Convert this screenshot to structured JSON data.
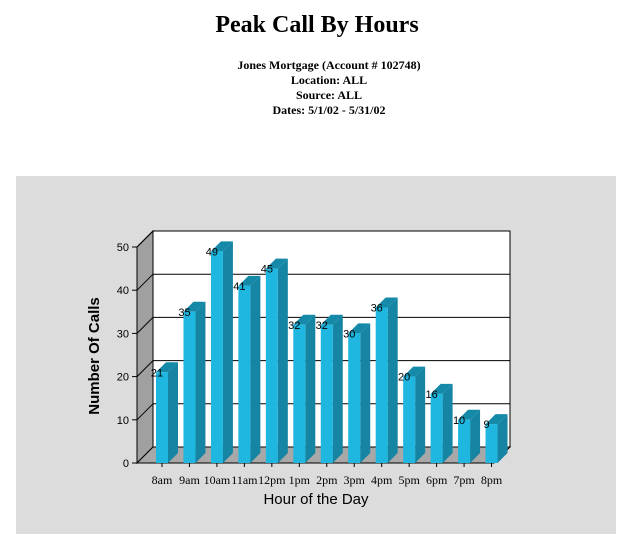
{
  "report": {
    "title": "Peak Call By Hours",
    "account_line": "Jones Mortgage (Account # 102748)",
    "location_line": "Location: ALL",
    "source_line": "Source: ALL",
    "dates_line": "Dates: 5/1/02 - 5/31/02"
  },
  "chart_data": {
    "type": "bar",
    "title": "",
    "xlabel": "Hour of the Day",
    "ylabel": "Number Of Calls",
    "categories": [
      "8am",
      "9am",
      "10am",
      "11am",
      "12pm",
      "1pm",
      "2pm",
      "3pm",
      "4pm",
      "5pm",
      "6pm",
      "7pm",
      "8pm"
    ],
    "values": [
      21,
      35,
      49,
      41,
      45,
      32,
      32,
      30,
      36,
      20,
      16,
      10,
      9
    ],
    "ylim": [
      0,
      50
    ],
    "yticks": [
      0,
      10,
      20,
      30,
      40,
      50
    ],
    "grid": true,
    "three_d": true,
    "colors": {
      "bar_front": "#1fb6e0",
      "bar_side": "#1585a3",
      "bar_top": "#158aa8",
      "panel_background": "#dcdcdc",
      "plot_background": "#ffffff",
      "floor": "#a8a8a8"
    }
  }
}
